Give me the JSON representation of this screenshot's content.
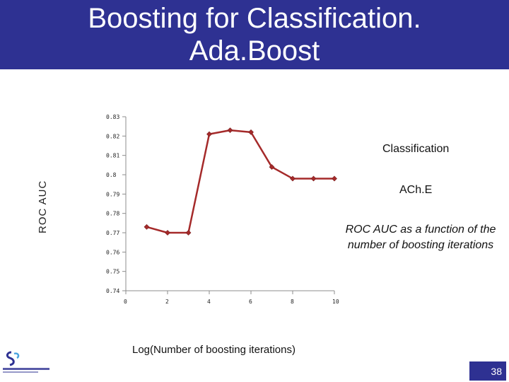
{
  "slide": {
    "title_line1": "Boosting for Classification.",
    "title_line2": "Ada.Boost",
    "note_classification": "Classification",
    "note_dataset": "ACh.E",
    "note_caption": "ROC AUC as a function of the number of boosting iterations",
    "page_number": "38",
    "colors": {
      "title_bar": "#2e3192",
      "series": "#a52a2a"
    }
  },
  "chart_data": {
    "type": "line",
    "xlabel": "Log(Number of boosting iterations)",
    "ylabel": "ROC AUC",
    "xlim": [
      0,
      10
    ],
    "ylim": [
      0.74,
      0.83
    ],
    "xticks": [
      "0",
      "2",
      "4",
      "6",
      "8",
      "10"
    ],
    "yticks": [
      "0.74",
      "0.75",
      "0.76",
      "0.77",
      "0.78",
      "0.79",
      "0.8",
      "0.81",
      "0.82",
      "0.83"
    ],
    "grid": false,
    "series": [
      {
        "x": [
          1,
          2,
          3,
          4,
          5,
          6,
          7,
          8,
          9,
          10
        ],
        "y": [
          0.773,
          0.77,
          0.77,
          0.821,
          0.823,
          0.822,
          0.804,
          0.798,
          0.798,
          0.798
        ]
      }
    ]
  }
}
